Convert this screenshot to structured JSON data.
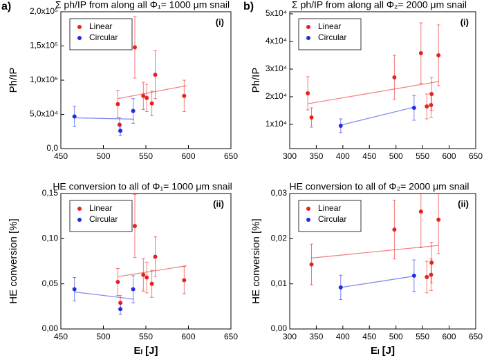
{
  "panel_labels": [
    "a)",
    "b)"
  ],
  "chart_data": [
    {
      "type": "scatter",
      "title": "Σ ph/IP from along all Φ₁= 1000 μm snail",
      "y_label": "Ph/IP",
      "tag": "(i)",
      "xlim": [
        450,
        650
      ],
      "xticks": [
        450,
        500,
        550,
        600,
        650
      ],
      "ylim": [
        0,
        200000
      ],
      "yticks": [
        {
          "value": 0,
          "label": "0,0"
        },
        {
          "value": 50000,
          "label": "5,0x10⁴"
        },
        {
          "value": 100000,
          "label": "1,0x10⁵"
        },
        {
          "value": 150000,
          "label": "1,5x10⁵"
        },
        {
          "value": 200000,
          "label": "2,0x10⁵"
        }
      ],
      "series": [
        {
          "name": "Linear",
          "color": "#e8211e",
          "x": [
            517,
            519,
            537,
            547,
            551,
            557,
            561,
            595
          ],
          "values": [
            65000,
            35000,
            148000,
            77000,
            74000,
            66000,
            108000,
            77000
          ],
          "errors": [
            20000,
            10000,
            45000,
            20000,
            20000,
            18000,
            35000,
            23000
          ],
          "fit": {
            "x": [
              517,
              598
            ],
            "y": [
              73000,
              92000
            ]
          }
        },
        {
          "name": "Circular",
          "color": "#1f2fe0",
          "x": [
            466,
            520,
            535
          ],
          "values": [
            47000,
            26000,
            55000
          ],
          "errors": [
            15000,
            7000,
            18000
          ],
          "fit": {
            "x": [
              466,
              536
            ],
            "y": [
              45000,
              43000
            ]
          }
        }
      ]
    },
    {
      "type": "scatter",
      "title": "HE conversion to all of Φ₁= 1000 μm snail",
      "y_label": "HE conversion [%]",
      "x_label": "Eₗ [J]",
      "tag": "(ii)",
      "xlim": [
        450,
        650
      ],
      "xticks": [
        450,
        500,
        550,
        600,
        650
      ],
      "ylim": [
        0,
        0.15
      ],
      "yticks": [
        {
          "value": 0,
          "label": "0,00"
        },
        {
          "value": 0.05,
          "label": "0,05"
        },
        {
          "value": 0.1,
          "label": "0,10"
        },
        {
          "value": 0.15,
          "label": "0,15"
        }
      ],
      "series": [
        {
          "name": "Linear",
          "color": "#e8211e",
          "x": [
            517,
            520,
            537,
            547,
            551,
            557,
            561,
            595
          ],
          "values": [
            0.052,
            0.029,
            0.114,
            0.06,
            0.057,
            0.05,
            0.08,
            0.054
          ],
          "errors": [
            0.015,
            0.008,
            0.035,
            0.018,
            0.017,
            0.015,
            0.022,
            0.015
          ],
          "fit": {
            "x": [
              517,
              598
            ],
            "y": [
              0.058,
              0.07
            ]
          }
        },
        {
          "name": "Circular",
          "color": "#1f2fe0",
          "x": [
            466,
            520,
            535
          ],
          "values": [
            0.044,
            0.022,
            0.044
          ],
          "errors": [
            0.013,
            0.006,
            0.015
          ],
          "fit": {
            "x": [
              466,
              536
            ],
            "y": [
              0.041,
              0.033
            ]
          }
        }
      ]
    },
    {
      "type": "scatter",
      "title": "Σ ph/IP from along all Φ₂= 2000 μm snail",
      "y_label": "Ph/IP",
      "tag": "(i)",
      "xlim": [
        300,
        650
      ],
      "xticks": [
        300,
        350,
        400,
        450,
        500,
        550,
        600,
        650
      ],
      "ylim": [
        1250,
        50750
      ],
      "yticks": [
        {
          "value": 10000,
          "label": "1x10⁴"
        },
        {
          "value": 20000,
          "label": "2x10⁴"
        },
        {
          "value": 30000,
          "label": "3x10⁴"
        },
        {
          "value": 40000,
          "label": "4x10⁴"
        },
        {
          "value": 50000,
          "label": "5x10⁴"
        }
      ],
      "series": [
        {
          "name": "Linear",
          "color": "#e8211e",
          "x": [
            334,
            341,
            497,
            547,
            558,
            566,
            567,
            580
          ],
          "values": [
            21250,
            12500,
            27000,
            35750,
            16500,
            17000,
            21000,
            35000
          ],
          "errors": [
            6000,
            3500,
            8000,
            11000,
            4500,
            4500,
            6000,
            11000
          ],
          "fit": {
            "x": [
              335,
              580
            ],
            "y": [
              17500,
              25500
            ]
          }
        },
        {
          "name": "Circular",
          "color": "#1f2fe0",
          "x": [
            396,
            534
          ],
          "values": [
            9500,
            16000
          ],
          "errors": [
            2500,
            4500
          ],
          "fit": {
            "x": [
              396,
              534
            ],
            "y": [
              9750,
              16250
            ]
          }
        }
      ]
    },
    {
      "type": "scatter",
      "title": "HE conversion to all of Φ₂= 2000 μm snail",
      "y_label": "HE conversion [%]",
      "x_label": "Eₗ [J]",
      "tag": "(ii)",
      "xlim": [
        300,
        650
      ],
      "xticks": [
        300,
        350,
        400,
        450,
        500,
        550,
        600,
        650
      ],
      "ylim": [
        0,
        0.03
      ],
      "yticks": [
        {
          "value": 0,
          "label": "0,00"
        },
        {
          "value": 0.01,
          "label": "0,01"
        },
        {
          "value": 0.02,
          "label": "0,02"
        },
        {
          "value": 0.03,
          "label": "0,03"
        }
      ],
      "series": [
        {
          "name": "Linear",
          "color": "#e8211e",
          "x": [
            341,
            497,
            547,
            558,
            566,
            567,
            580
          ],
          "values": [
            0.0143,
            0.022,
            0.026,
            0.0115,
            0.012,
            0.0147,
            0.0242
          ],
          "errors": [
            0.0045,
            0.0065,
            0.008,
            0.0035,
            0.0035,
            0.0045,
            0.0075
          ],
          "fit": {
            "x": [
              340,
              580
            ],
            "y": [
              0.0157,
              0.0185
            ]
          }
        },
        {
          "name": "Circular",
          "color": "#1f2fe0",
          "x": [
            396,
            534
          ],
          "values": [
            0.0092,
            0.0118
          ],
          "errors": [
            0.0027,
            0.0035
          ],
          "fit": {
            "x": [
              396,
              534
            ],
            "y": [
              0.0092,
              0.0117
            ]
          }
        }
      ]
    }
  ]
}
